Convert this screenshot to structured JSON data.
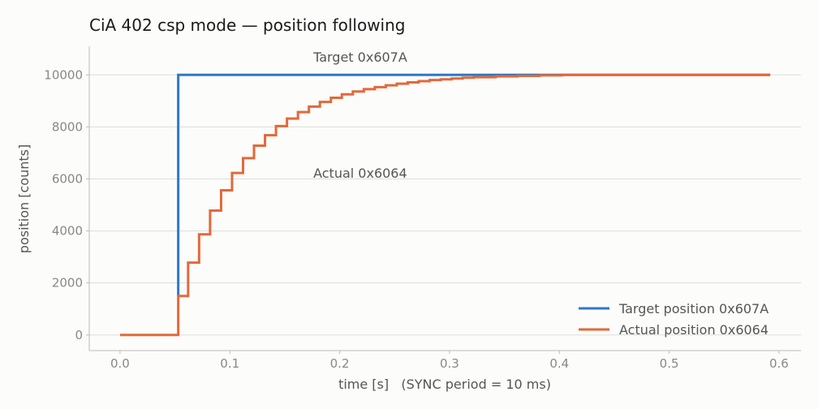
{
  "chart_data": {
    "type": "line",
    "title": "CiA 402 csp mode — position following",
    "xlabel": "time [s]   (SYNC period = 10 ms)",
    "ylabel": "position [counts]",
    "xlim": [
      -0.028,
      0.62
    ],
    "ylim": [
      -600,
      11100
    ],
    "xticks": [
      0.0,
      0.1,
      0.2,
      0.3,
      0.4,
      0.5,
      0.6
    ],
    "xtick_labels": [
      "0.0",
      "0.1",
      "0.2",
      "0.3",
      "0.4",
      "0.5",
      "0.6"
    ],
    "yticks": [
      0,
      2000,
      4000,
      6000,
      8000,
      10000
    ],
    "ytick_labels": [
      "0",
      "2000",
      "4000",
      "6000",
      "8000",
      "10000"
    ],
    "grid": "horizontal",
    "legend_position": "lower-right",
    "annotations": [
      {
        "text": "Target  0x607A",
        "x": 0.176,
        "y": 10500
      },
      {
        "text": "Actual  0x6064",
        "x": 0.176,
        "y": 6050
      }
    ],
    "series": [
      {
        "name": "Target position  0x607A",
        "color": "#2f78c4",
        "step": "post",
        "x": [
          0.053,
          0.053,
          0.592
        ],
        "y": [
          1500,
          10000,
          10000
        ]
      },
      {
        "name": "Actual position  0x6064",
        "color": "#e2693a",
        "step": "post",
        "x": [
          0.0,
          0.053,
          0.062,
          0.072,
          0.082,
          0.092,
          0.102,
          0.112,
          0.122,
          0.132,
          0.142,
          0.152,
          0.162,
          0.172,
          0.182,
          0.192,
          0.202,
          0.212,
          0.222,
          0.232,
          0.242,
          0.252,
          0.262,
          0.272,
          0.282,
          0.292,
          0.302,
          0.312,
          0.322,
          0.342,
          0.362,
          0.382,
          0.402,
          0.592
        ],
        "y": [
          0,
          1500,
          2780,
          3870,
          4780,
          5560,
          6230,
          6800,
          7280,
          7680,
          8030,
          8320,
          8570,
          8780,
          8960,
          9120,
          9250,
          9360,
          9450,
          9530,
          9600,
          9660,
          9710,
          9760,
          9800,
          9830,
          9860,
          9890,
          9910,
          9940,
          9960,
          9980,
          10000,
          10000
        ]
      }
    ]
  }
}
